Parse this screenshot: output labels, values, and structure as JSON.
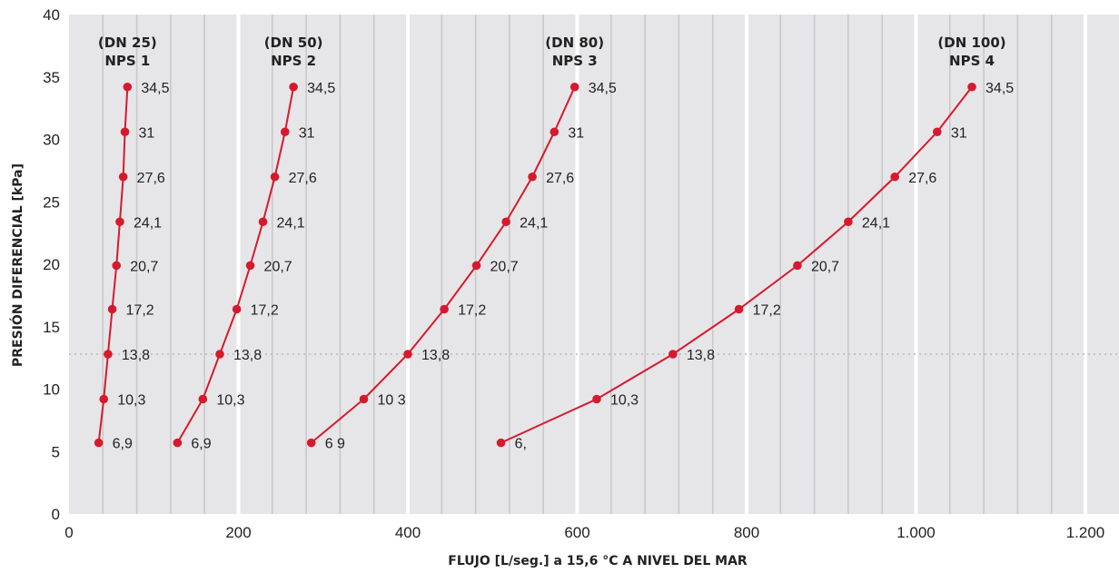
{
  "chart_data": {
    "type": "line",
    "xlabel": "FLUJO [L/seg.] a 15,6 °C A NIVEL DEL MAR",
    "ylabel": "PRESIÓN DIFERENCIAL [kPa]",
    "xlim": [
      0,
      1200
    ],
    "ylim": [
      0,
      40
    ],
    "x_ticks": [
      0,
      200,
      400,
      600,
      800,
      1000,
      1200
    ],
    "x_tick_labels": [
      "0",
      "200",
      "400",
      "600",
      "800",
      "1.000",
      "1.200"
    ],
    "y_ticks": [
      0,
      5,
      10,
      15,
      20,
      25,
      30,
      35,
      40
    ],
    "y_tick_labels": [
      "0",
      "5",
      "10",
      "15",
      "20",
      "25",
      "30",
      "35",
      "40"
    ],
    "major_vgrid_x": [
      200,
      400,
      600,
      800,
      1000,
      1200
    ],
    "minor_vgrid_x": [
      40,
      80,
      120,
      160,
      240,
      280,
      320,
      360,
      440,
      480,
      520,
      560,
      640,
      680,
      720,
      760,
      840,
      880,
      920,
      960,
      1040,
      1080,
      1120,
      1160
    ],
    "reference_line_y": 12.8,
    "grid": true,
    "colors": {
      "plot_background": "#e6e6e8",
      "minor_grid": "#c9c9cc",
      "major_grid": "#ffffff",
      "series": "#d7192d",
      "reference_line": "#b9b9b9"
    },
    "series": [
      {
        "title_lines": [
          "(DN 25)",
          "NPS 1"
        ],
        "x": [
          35,
          41,
          46,
          51,
          56,
          60,
          64,
          66,
          69
        ],
        "y": [
          5.7,
          9.2,
          12.8,
          16.4,
          19.9,
          23.4,
          27.0,
          30.6,
          34.2
        ],
        "labels": [
          "6,9",
          "10,3",
          "13,8",
          "17,2",
          "20,7",
          "24,1",
          "27,6",
          "31",
          "34,5"
        ]
      },
      {
        "title_lines": [
          "(DN 50)",
          "NPS 2"
        ],
        "x": [
          128,
          158,
          178,
          198,
          214,
          229,
          243,
          255,
          265
        ],
        "y": [
          5.7,
          9.2,
          12.8,
          16.4,
          19.9,
          23.4,
          27.0,
          30.6,
          34.2
        ],
        "labels": [
          "6,9",
          "10,3",
          "13,8",
          "17,2",
          "20,7",
          "24,1",
          "27,6",
          "31",
          "34,5"
        ]
      },
      {
        "title_lines": [
          "(DN 80)",
          "NPS 3"
        ],
        "x": [
          286,
          348,
          400,
          443,
          481,
          516,
          547,
          573,
          597
        ],
        "y": [
          5.7,
          9.2,
          12.8,
          16.4,
          19.9,
          23.4,
          27.0,
          30.6,
          34.2
        ],
        "labels": [
          "6 9",
          "10 3",
          "13,8",
          "17,2",
          "20,7",
          "24,1",
          "27,6",
          "31",
          "34,5"
        ]
      },
      {
        "title_lines": [
          "(DN 100)",
          "NPS 4"
        ],
        "x": [
          510,
          623,
          713,
          791,
          860,
          920,
          975,
          1025,
          1066
        ],
        "y": [
          5.7,
          9.2,
          12.8,
          16.4,
          19.9,
          23.4,
          27.0,
          30.6,
          34.2
        ],
        "labels": [
          "6,",
          "10,3",
          "13,8",
          "17,2",
          "20,7",
          "24,1",
          "27,6",
          "31",
          "34,5"
        ]
      }
    ]
  }
}
